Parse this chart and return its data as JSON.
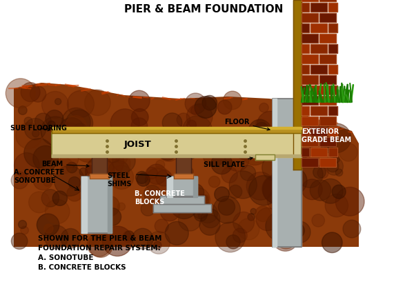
{
  "title": "PIER & BEAM FOUNDATION",
  "title_fontsize": 11,
  "title_fontweight": "bold",
  "bg_color": "#ffffff",
  "soil_color": "#8b3a0a",
  "concrete_color": "#a8b0b0",
  "concrete_light": "#c8d0d0",
  "concrete_dark": "#787878",
  "joist_color": "#d8cc90",
  "joist_border": "#a09030",
  "floor_color": "#b89020",
  "floor_light": "#d4b030",
  "beam_color": "#6b3a1f",
  "beam_dark": "#4a2010",
  "brick_main": "#8b2800",
  "brick_dark": "#6b1800",
  "brick_light": "#a03000",
  "mortar_color": "#c07040",
  "wood_trim": "#9a7000",
  "grass_color": "#1a7a00",
  "grass_light": "#2a9a10",
  "shim_color": "#909090",
  "footer_line1": "SHOWN FOR THE PIER & BEAM",
  "footer_line2": "FOUNDATION REPAIR SYSTEM:",
  "footer_line3": "A. SONOTUBE",
  "footer_line4": "B. CONCRETE BLOCKS"
}
